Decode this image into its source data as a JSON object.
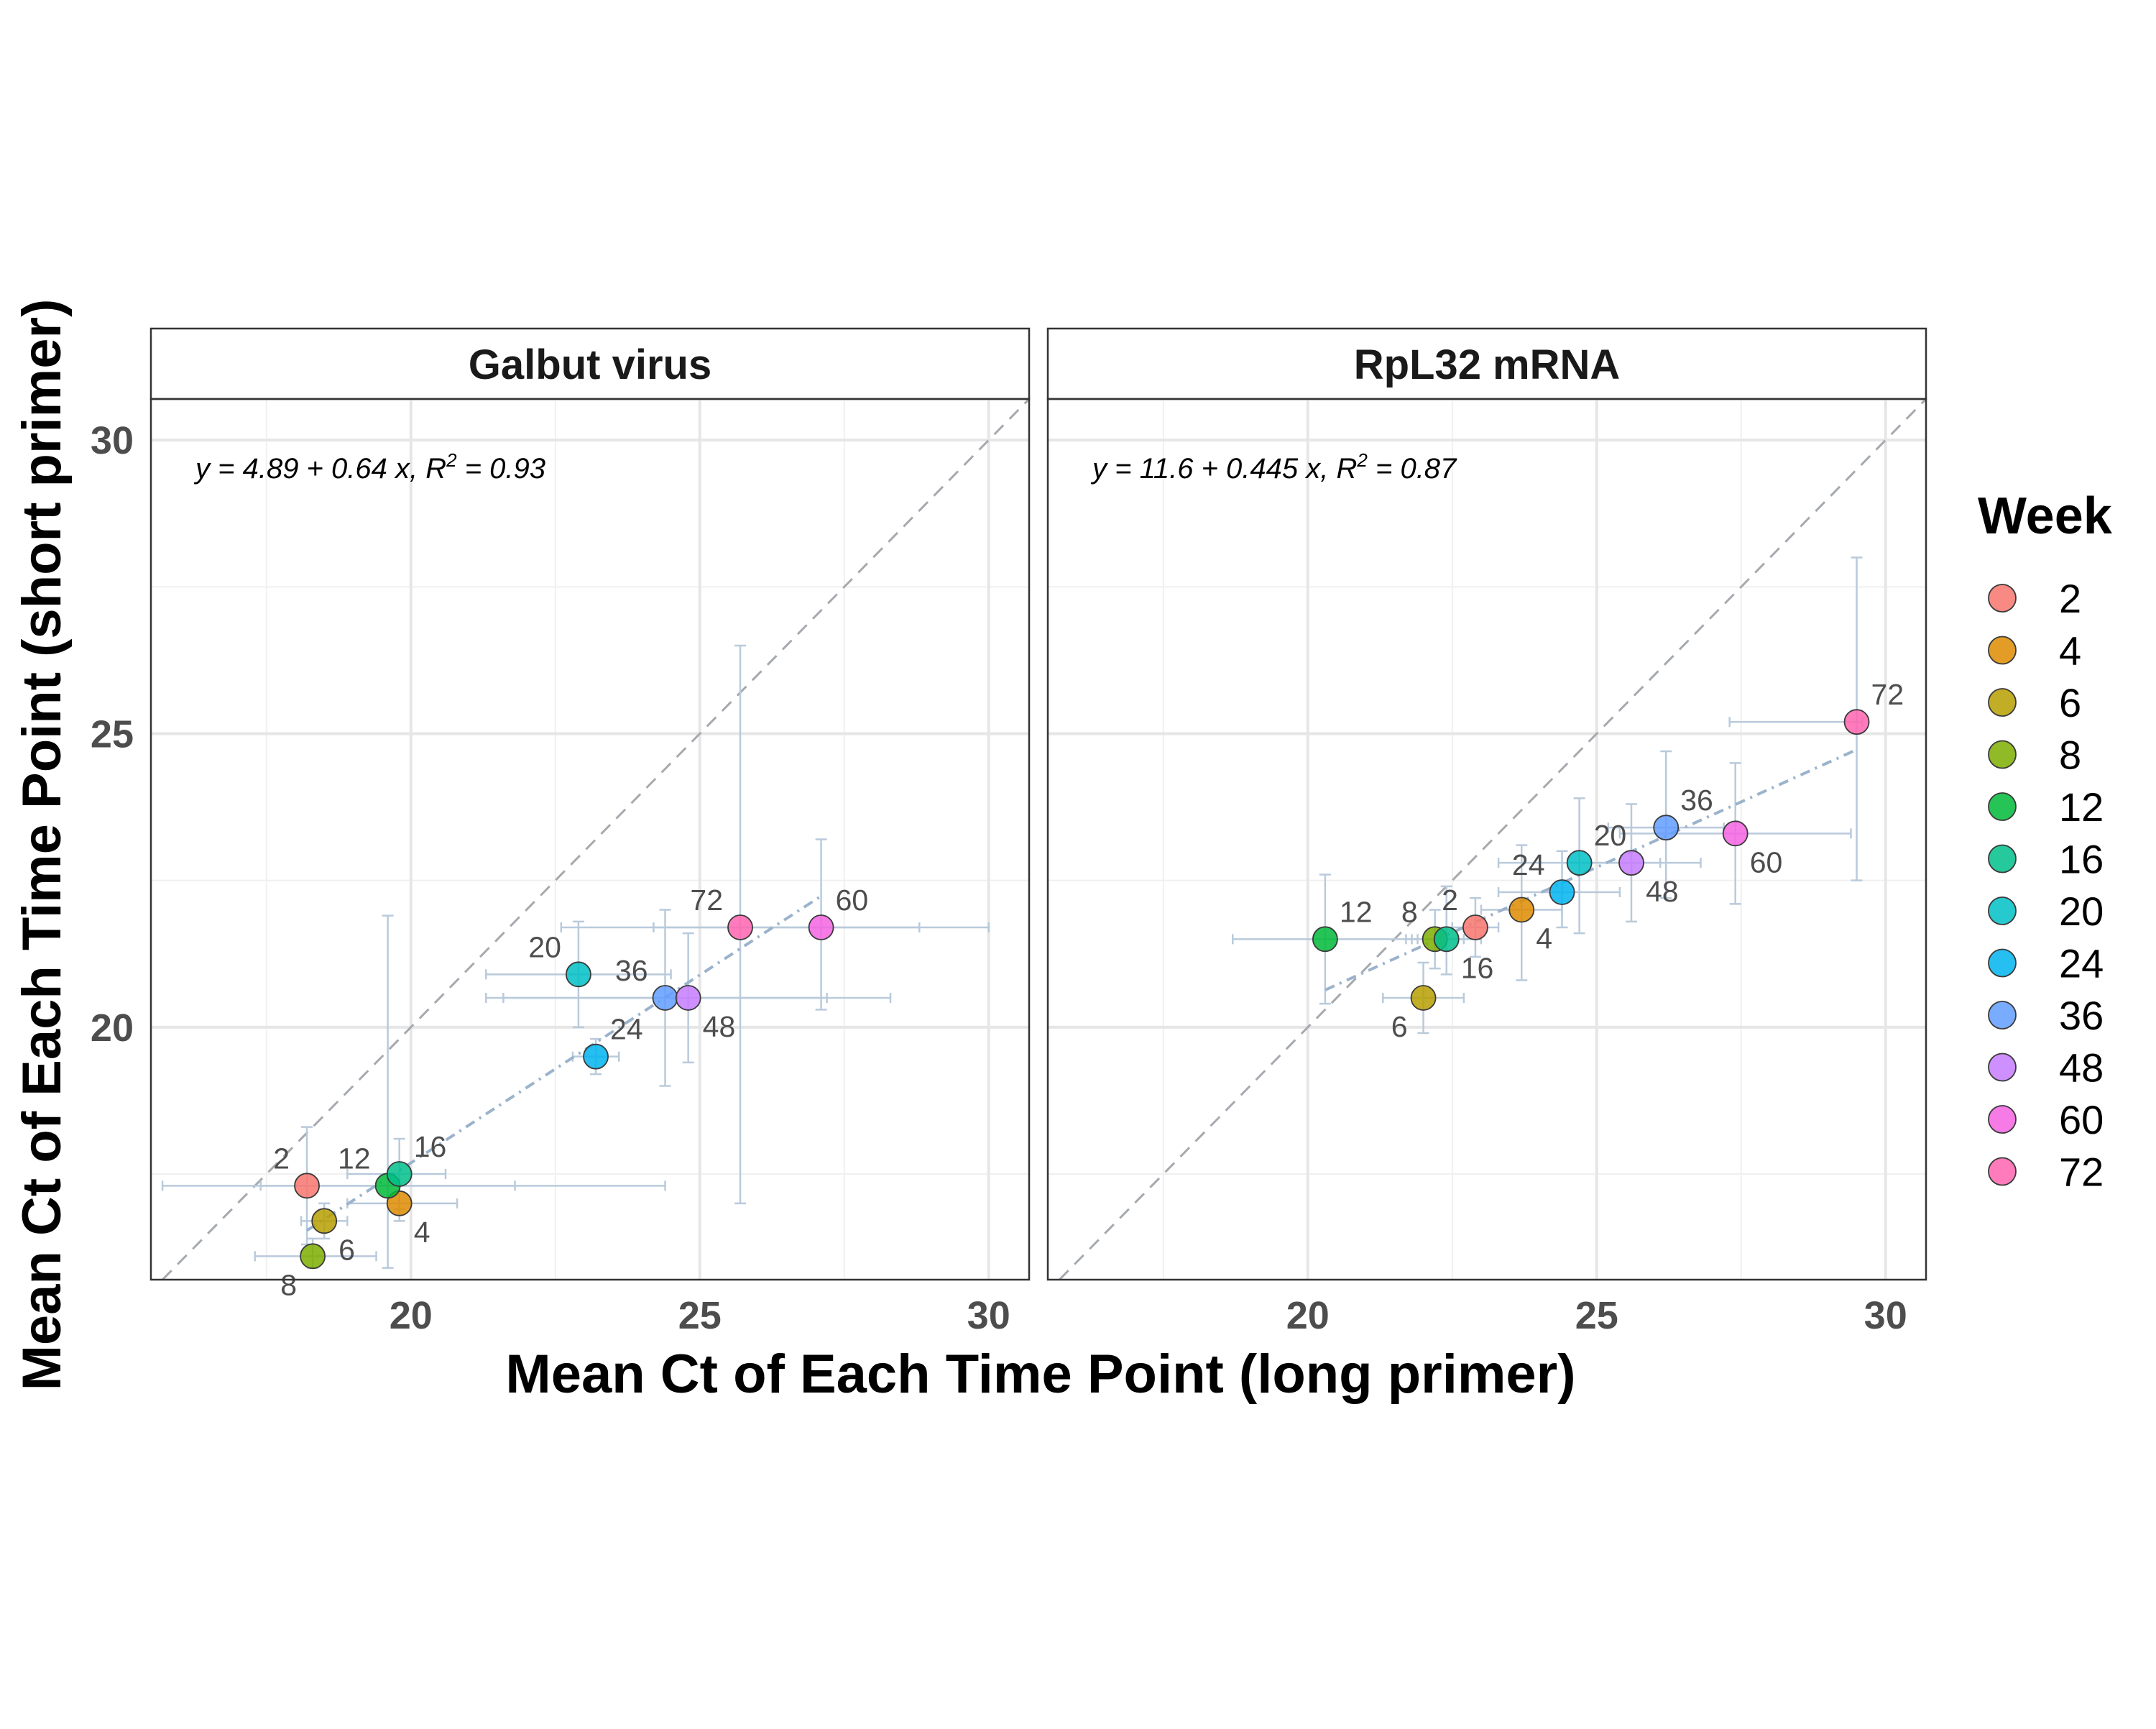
{
  "chart_data": {
    "type": "scatter",
    "xlabel": "Mean Ct of Each Time Point (long primer)",
    "ylabel": "Mean Ct of Each Time Point (short primer)",
    "xlim": [
      15.5,
      30.7
    ],
    "ylim": [
      15.7,
      30.7
    ],
    "x_ticks": [
      20,
      25,
      30
    ],
    "y_ticks": [
      20,
      25,
      30
    ],
    "grid": true,
    "identity_line": true,
    "legend": {
      "title": "Week",
      "position": "right",
      "entries": [
        {
          "label": "2",
          "color": "#F8766D"
        },
        {
          "label": "4",
          "color": "#DE8C00"
        },
        {
          "label": "6",
          "color": "#B79F00"
        },
        {
          "label": "8",
          "color": "#7CAE00"
        },
        {
          "label": "12",
          "color": "#00BA38"
        },
        {
          "label": "16",
          "color": "#00C08B"
        },
        {
          "label": "20",
          "color": "#00BFC4"
        },
        {
          "label": "24",
          "color": "#00B4F0"
        },
        {
          "label": "36",
          "color": "#619CFF"
        },
        {
          "label": "48",
          "color": "#C77CFF"
        },
        {
          "label": "60",
          "color": "#F564E3"
        },
        {
          "label": "72",
          "color": "#FF64B0"
        }
      ]
    },
    "panels": [
      {
        "title": "Galbut virus",
        "equation": {
          "prefix": "y = 4.89 + 0.64 x,  R",
          "sup": "2",
          "suffix": " = 0.93"
        },
        "fit": {
          "intercept": 4.89,
          "slope": 0.64,
          "x_range": [
            18.2,
            27.1
          ]
        },
        "points": [
          {
            "week": "2",
            "x": 18.2,
            "y": 17.3,
            "xerr": [
              15.7,
              24.4
            ],
            "yerr": [
              16.3,
              18.3
            ],
            "label_pos": "upper-left"
          },
          {
            "week": "4",
            "x": 19.8,
            "y": 17.0,
            "xerr": [
              18.9,
              20.8
            ],
            "yerr": [
              16.7,
              17.5
            ],
            "label_pos": "lower-right"
          },
          {
            "week": "6",
            "x": 18.5,
            "y": 16.7,
            "xerr": [
              18.1,
              18.9
            ],
            "yerr": [
              16.4,
              17.0
            ],
            "label_pos": "lower-right"
          },
          {
            "week": "8",
            "x": 18.3,
            "y": 16.1,
            "xerr": [
              17.3,
              19.4
            ],
            "yerr": [
              15.9,
              16.4
            ],
            "label_pos": "lower-left"
          },
          {
            "week": "12",
            "x": 19.6,
            "y": 17.3,
            "xerr": [
              17.4,
              21.8
            ],
            "yerr": [
              15.9,
              21.9
            ],
            "label_pos": "upper-left"
          },
          {
            "week": "16",
            "x": 19.8,
            "y": 17.5,
            "xerr": [
              18.9,
              20.6
            ],
            "yerr": [
              16.9,
              18.1
            ],
            "label_pos": "upper-right"
          },
          {
            "week": "20",
            "x": 22.9,
            "y": 20.9,
            "xerr": [
              21.3,
              24.5
            ],
            "yerr": [
              20.0,
              21.8
            ],
            "label_pos": "upper-left"
          },
          {
            "week": "24",
            "x": 23.2,
            "y": 19.5,
            "xerr": [
              22.8,
              23.6
            ],
            "yerr": [
              19.2,
              19.8
            ],
            "label_pos": "upper-right"
          },
          {
            "week": "36",
            "x": 24.4,
            "y": 20.5,
            "xerr": [
              21.6,
              27.2
            ],
            "yerr": [
              19.0,
              22.0
            ],
            "label_pos": "upper-left"
          },
          {
            "week": "48",
            "x": 24.8,
            "y": 20.5,
            "xerr": [
              21.3,
              28.3
            ],
            "yerr": [
              19.4,
              21.6
            ],
            "label_pos": "lower-right"
          },
          {
            "week": "60",
            "x": 27.1,
            "y": 21.7,
            "xerr": [
              24.2,
              30.0
            ],
            "yerr": [
              20.3,
              23.2
            ],
            "label_pos": "upper-right"
          },
          {
            "week": "72",
            "x": 25.7,
            "y": 21.7,
            "xerr": [
              22.6,
              28.8
            ],
            "yerr": [
              17.0,
              26.5
            ],
            "label_pos": "upper-left"
          }
        ]
      },
      {
        "title": "RpL32 mRNA",
        "equation": {
          "prefix": "y = 11.6 + 0.445 x,  R",
          "sup": "2",
          "suffix": " = 0.87"
        },
        "fit": {
          "intercept": 11.6,
          "slope": 0.445,
          "x_range": [
            20.3,
            29.5
          ]
        },
        "points": [
          {
            "week": "2",
            "x": 22.9,
            "y": 21.7,
            "xerr": [
              22.5,
              23.3
            ],
            "yerr": [
              21.2,
              22.2
            ],
            "label_pos": "upper-left"
          },
          {
            "week": "4",
            "x": 23.7,
            "y": 22.0,
            "xerr": [
              23.0,
              24.4
            ],
            "yerr": [
              20.8,
              23.1
            ],
            "label_pos": "lower-right"
          },
          {
            "week": "6",
            "x": 22.0,
            "y": 20.5,
            "xerr": [
              21.3,
              22.7
            ],
            "yerr": [
              19.9,
              21.1
            ],
            "label_pos": "lower-left"
          },
          {
            "week": "8",
            "x": 22.2,
            "y": 21.5,
            "xerr": [
              21.7,
              22.7
            ],
            "yerr": [
              21.0,
              22.0
            ],
            "label_pos": "upper-left"
          },
          {
            "week": "12",
            "x": 20.3,
            "y": 21.5,
            "xerr": [
              18.7,
              21.9
            ],
            "yerr": [
              20.4,
              22.6
            ],
            "label_pos": "upper-right"
          },
          {
            "week": "16",
            "x": 22.4,
            "y": 21.5,
            "xerr": [
              21.8,
              23.0
            ],
            "yerr": [
              20.9,
              22.4
            ],
            "label_pos": "lower-right"
          },
          {
            "week": "20",
            "x": 24.7,
            "y": 22.8,
            "xerr": [
              23.3,
              26.1
            ],
            "yerr": [
              21.6,
              23.9
            ],
            "label_pos": "upper-right"
          },
          {
            "week": "24",
            "x": 24.4,
            "y": 22.3,
            "xerr": [
              23.3,
              25.4
            ],
            "yerr": [
              21.7,
              23.0
            ],
            "label_pos": "upper-left"
          },
          {
            "week": "36",
            "x": 26.2,
            "y": 23.4,
            "xerr": [
              25.2,
              27.2
            ],
            "yerr": [
              22.2,
              24.7
            ],
            "label_pos": "upper-right"
          },
          {
            "week": "48",
            "x": 25.6,
            "y": 22.8,
            "xerr": [
              24.5,
              26.8
            ],
            "yerr": [
              21.8,
              23.8
            ],
            "label_pos": "lower-right"
          },
          {
            "week": "60",
            "x": 27.4,
            "y": 23.3,
            "xerr": [
              25.4,
              29.4
            ],
            "yerr": [
              22.1,
              24.5
            ],
            "label_pos": "lower-right"
          },
          {
            "week": "72",
            "x": 29.5,
            "y": 25.2,
            "xerr": [
              27.3,
              29.6
            ],
            "yerr": [
              22.5,
              28.0
            ],
            "label_pos": "upper-right"
          }
        ]
      }
    ]
  }
}
